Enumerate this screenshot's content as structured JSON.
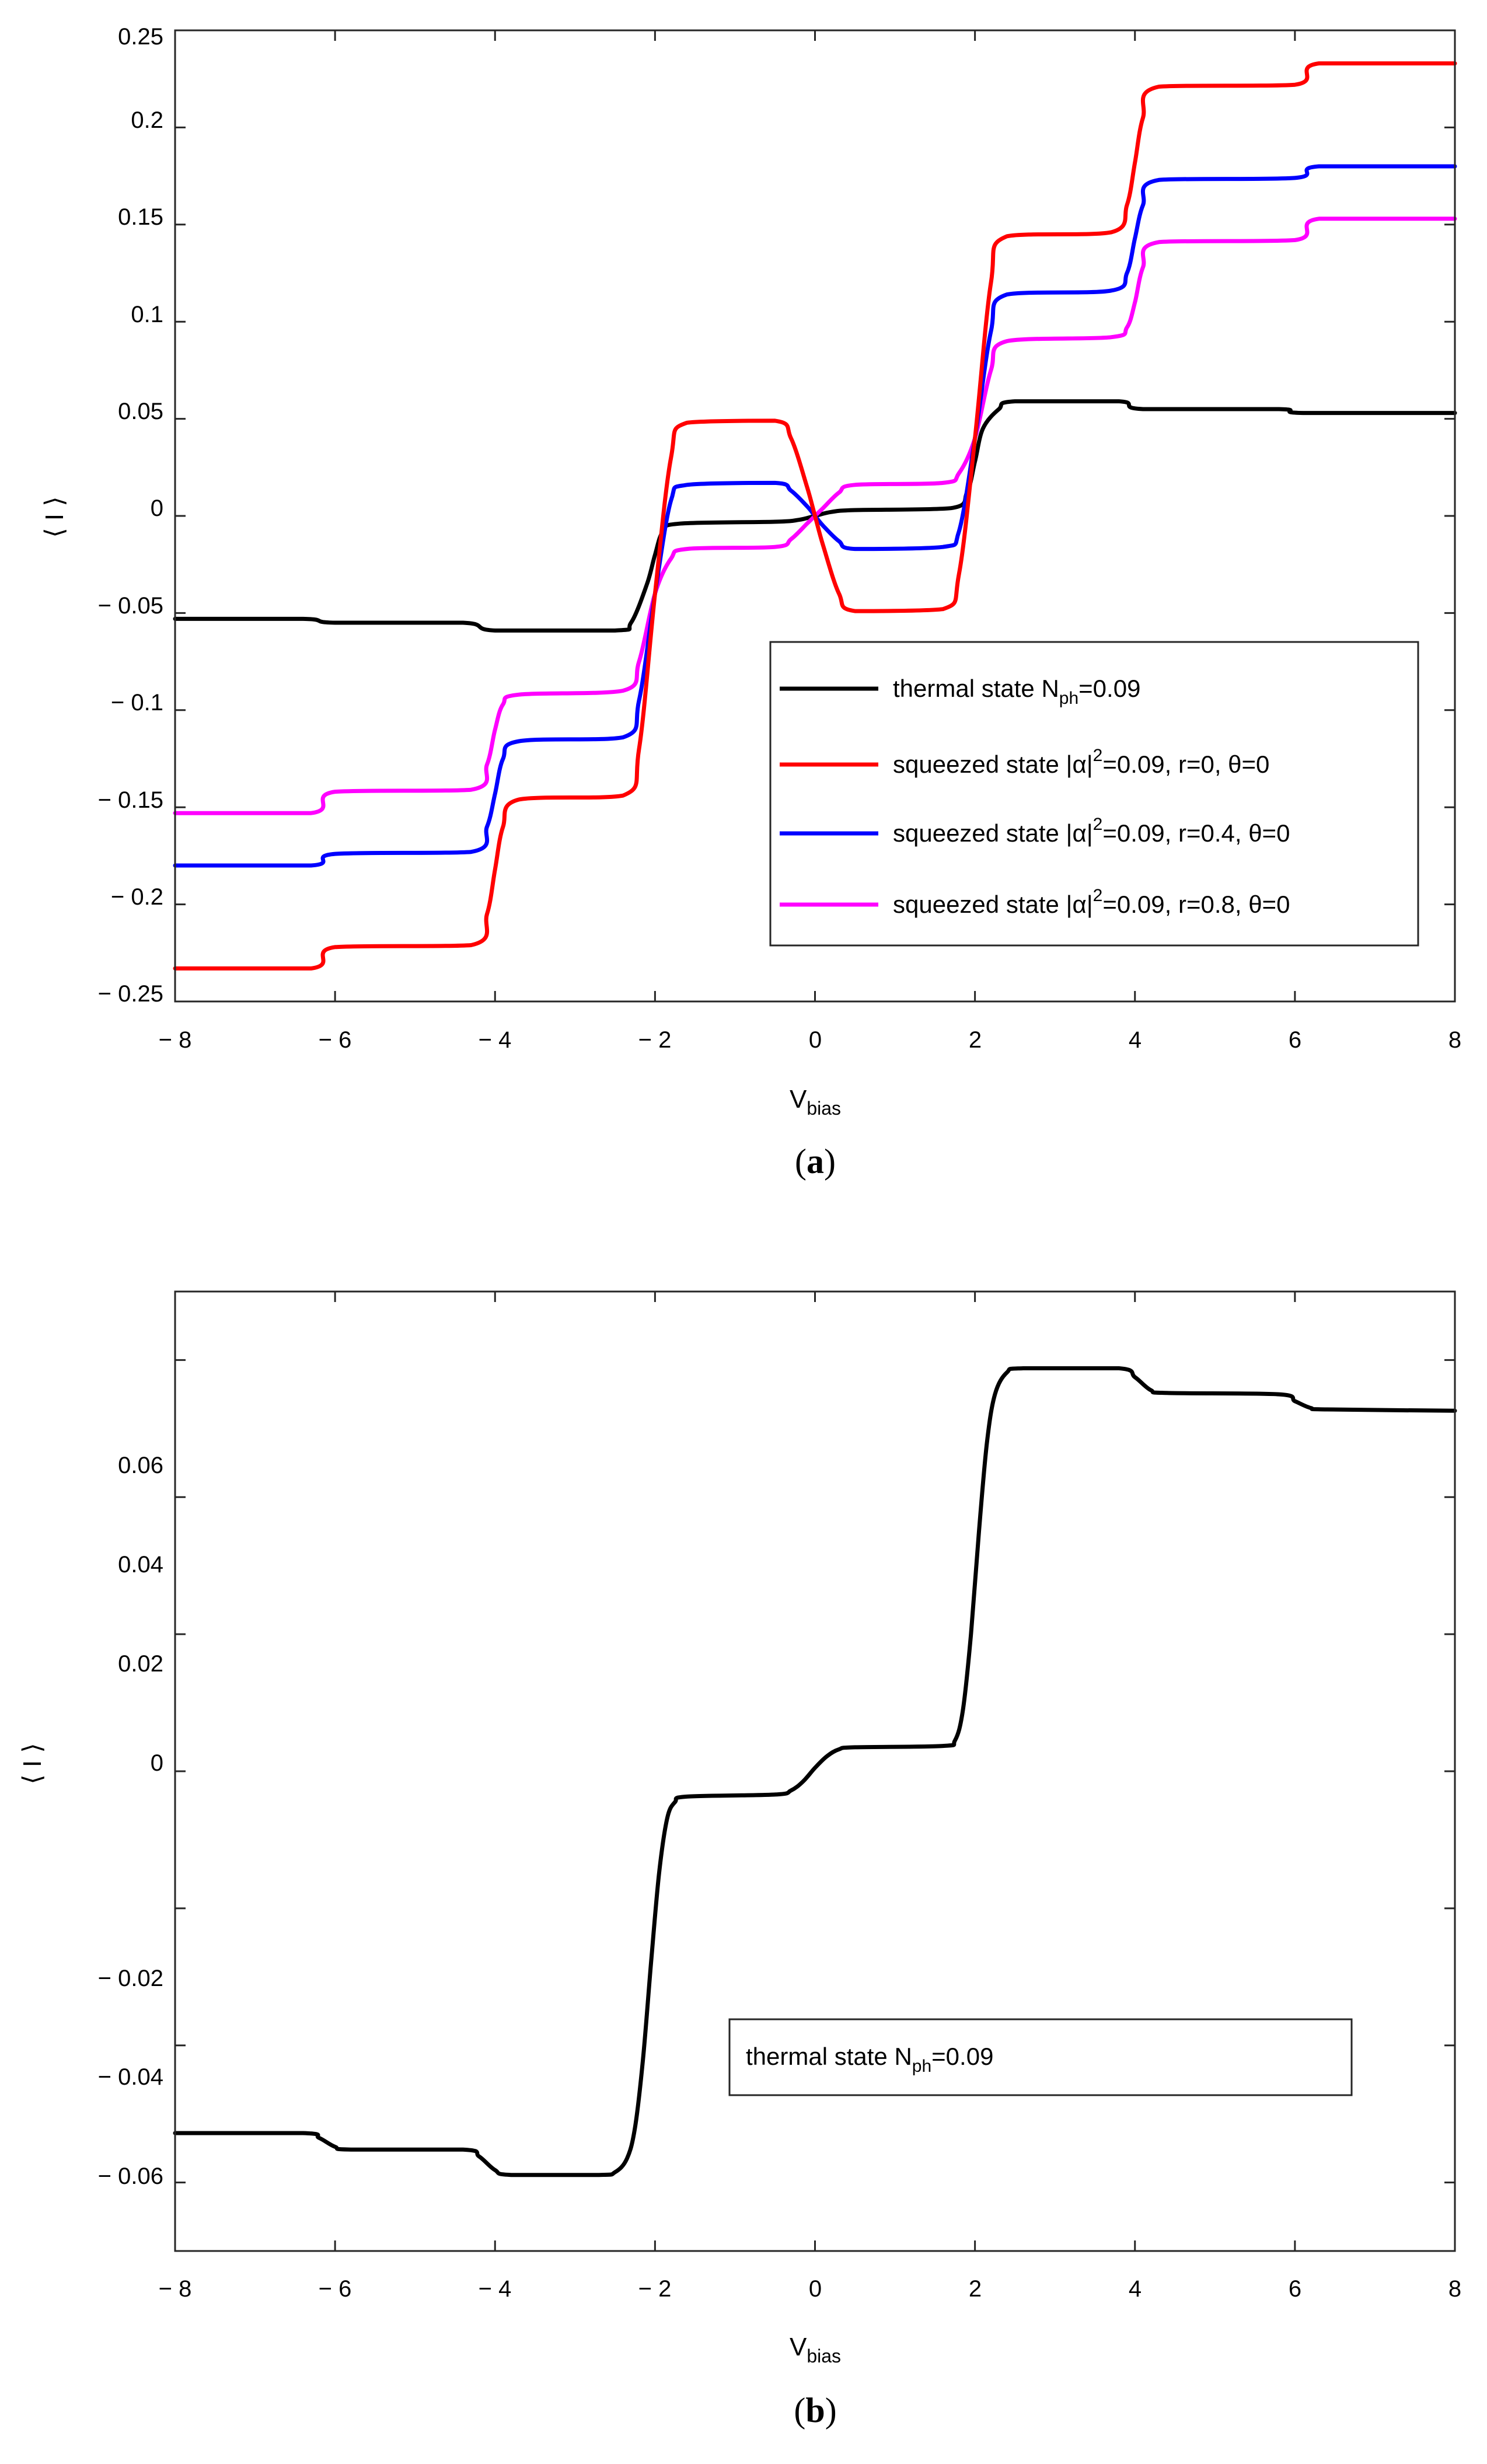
{
  "colors": {
    "black": "#000000",
    "red": "#ff0000",
    "blue": "#0000ff",
    "magenta": "#ff00ff"
  },
  "chart_data": [
    {
      "type": "line",
      "panel": "a",
      "caption": {
        "open": "(",
        "letter": "a",
        "close": ")"
      },
      "xlabel": {
        "main": "V",
        "sub": "bias"
      },
      "ylabel": "⟨ I ⟩",
      "xlim": [
        -8,
        8
      ],
      "ylim": [
        -0.25,
        0.25
      ],
      "xticks": [
        -8,
        -6,
        -4,
        -2,
        0,
        2,
        4,
        6,
        8
      ],
      "xtick_labels": [
        "− 8",
        "− 6",
        "− 4",
        "− 2",
        "0",
        "2",
        "4",
        "6",
        "8"
      ],
      "yticks": [
        -0.25,
        -0.2,
        -0.15,
        -0.1,
        -0.05,
        0,
        0.05,
        0.1,
        0.15,
        0.2,
        0.25
      ],
      "ytick_labels": [
        "− 0.25",
        "− 0.2",
        "− 0.15",
        "− 0.1",
        "− 0.05",
        "0",
        "0.05",
        "0.1",
        "0.15",
        "0.2",
        "0.25"
      ],
      "legend_location": "lower-right",
      "series": [
        {
          "name": "thermal state",
          "color": "#000000",
          "legend": {
            "pre": "thermal state N",
            "sub": "ph",
            "post": "=0.09"
          },
          "points": [
            [
              -8,
              -0.053
            ],
            [
              -6.4,
              -0.053
            ],
            [
              -6.0,
              -0.055
            ],
            [
              -4.4,
              -0.055
            ],
            [
              -4.0,
              -0.059
            ],
            [
              -2.5,
              -0.059
            ],
            [
              -2.3,
              -0.055
            ],
            [
              -2.1,
              -0.035
            ],
            [
              -2.0,
              -0.02
            ],
            [
              -1.9,
              -0.008
            ],
            [
              -1.7,
              -0.004
            ],
            [
              -0.5,
              -0.003
            ],
            [
              -0.2,
              -0.002
            ],
            [
              0,
              0
            ],
            [
              0.2,
              0.002
            ],
            [
              0.5,
              0.003
            ],
            [
              1.7,
              0.004
            ],
            [
              1.9,
              0.012
            ],
            [
              2.0,
              0.028
            ],
            [
              2.1,
              0.045
            ],
            [
              2.3,
              0.055
            ],
            [
              2.5,
              0.059
            ],
            [
              3.8,
              0.059
            ],
            [
              4.1,
              0.055
            ],
            [
              5.8,
              0.055
            ],
            [
              6.1,
              0.053
            ],
            [
              8,
              0.053
            ]
          ]
        },
        {
          "name": "squeezed r=0",
          "color": "#ff0000",
          "legend": {
            "pre": "squeezed state |α|",
            "sup": "2",
            "post": "=0.09, r=0, θ=0"
          },
          "points": [
            [
              -8,
              -0.233
            ],
            [
              -6.3,
              -0.233
            ],
            [
              -6.0,
              -0.222
            ],
            [
              -4.3,
              -0.221
            ],
            [
              -4.1,
              -0.205
            ],
            [
              -4.0,
              -0.182
            ],
            [
              -3.9,
              -0.16
            ],
            [
              -3.7,
              -0.146
            ],
            [
              -2.4,
              -0.144
            ],
            [
              -2.2,
              -0.12
            ],
            [
              -2.0,
              -0.04
            ],
            [
              -1.8,
              0.03
            ],
            [
              -1.6,
              0.048
            ],
            [
              -0.5,
              0.049
            ],
            [
              -0.3,
              0.04
            ],
            [
              -0.1,
              0.015
            ],
            [
              0,
              0
            ],
            [
              0.1,
              -0.015
            ],
            [
              0.3,
              -0.04
            ],
            [
              0.5,
              -0.049
            ],
            [
              1.6,
              -0.048
            ],
            [
              1.8,
              -0.03
            ],
            [
              2.0,
              0.04
            ],
            [
              2.2,
              0.12
            ],
            [
              2.4,
              0.144
            ],
            [
              3.7,
              0.146
            ],
            [
              3.9,
              0.16
            ],
            [
              4.0,
              0.182
            ],
            [
              4.1,
              0.205
            ],
            [
              4.3,
              0.221
            ],
            [
              6.0,
              0.222
            ],
            [
              6.3,
              0.233
            ],
            [
              8,
              0.233
            ]
          ]
        },
        {
          "name": "squeezed r=0.4",
          "color": "#0000ff",
          "legend": {
            "pre": "squeezed state |α|",
            "sup": "2",
            "post": "=0.09, r=0.4, θ=0"
          },
          "points": [
            [
              -8,
              -0.18
            ],
            [
              -6.3,
              -0.18
            ],
            [
              -6.0,
              -0.174
            ],
            [
              -4.3,
              -0.173
            ],
            [
              -4.1,
              -0.16
            ],
            [
              -4.0,
              -0.143
            ],
            [
              -3.9,
              -0.125
            ],
            [
              -3.7,
              -0.116
            ],
            [
              -2.4,
              -0.114
            ],
            [
              -2.2,
              -0.095
            ],
            [
              -2.0,
              -0.04
            ],
            [
              -1.8,
              0.008
            ],
            [
              -1.6,
              0.016
            ],
            [
              -0.5,
              0.017
            ],
            [
              -0.3,
              0.013
            ],
            [
              -0.1,
              0.005
            ],
            [
              0,
              0
            ],
            [
              0.1,
              -0.005
            ],
            [
              0.3,
              -0.013
            ],
            [
              0.5,
              -0.017
            ],
            [
              1.6,
              -0.016
            ],
            [
              1.8,
              -0.008
            ],
            [
              2.0,
              0.04
            ],
            [
              2.2,
              0.095
            ],
            [
              2.4,
              0.114
            ],
            [
              3.7,
              0.116
            ],
            [
              3.9,
              0.125
            ],
            [
              4.0,
              0.143
            ],
            [
              4.1,
              0.16
            ],
            [
              4.3,
              0.173
            ],
            [
              6.0,
              0.174
            ],
            [
              6.3,
              0.18
            ],
            [
              8,
              0.18
            ]
          ]
        },
        {
          "name": "squeezed r=0.8",
          "color": "#ff00ff",
          "legend": {
            "pre": "squeezed state |α|",
            "sup": "2",
            "post": "=0.09, r=0.8, θ=0"
          },
          "points": [
            [
              -8,
              -0.153
            ],
            [
              -6.3,
              -0.153
            ],
            [
              -6.0,
              -0.142
            ],
            [
              -4.3,
              -0.141
            ],
            [
              -4.1,
              -0.128
            ],
            [
              -4.0,
              -0.11
            ],
            [
              -3.9,
              -0.097
            ],
            [
              -3.7,
              -0.092
            ],
            [
              -2.4,
              -0.09
            ],
            [
              -2.2,
              -0.075
            ],
            [
              -2.0,
              -0.04
            ],
            [
              -1.8,
              -0.022
            ],
            [
              -1.6,
              -0.017
            ],
            [
              -0.5,
              -0.016
            ],
            [
              -0.3,
              -0.012
            ],
            [
              -0.1,
              -0.004
            ],
            [
              0,
              0
            ],
            [
              0.1,
              0.004
            ],
            [
              0.3,
              0.012
            ],
            [
              0.5,
              0.016
            ],
            [
              1.6,
              0.017
            ],
            [
              1.8,
              0.022
            ],
            [
              2.0,
              0.04
            ],
            [
              2.2,
              0.075
            ],
            [
              2.4,
              0.09
            ],
            [
              3.7,
              0.092
            ],
            [
              3.9,
              0.097
            ],
            [
              4.0,
              0.11
            ],
            [
              4.1,
              0.128
            ],
            [
              4.3,
              0.141
            ],
            [
              6.0,
              0.142
            ],
            [
              6.3,
              0.153
            ],
            [
              8,
              0.153
            ]
          ]
        }
      ]
    },
    {
      "type": "line",
      "panel": "b",
      "caption": {
        "open": "(",
        "letter": "b",
        "close": ")"
      },
      "xlabel": {
        "main": "V",
        "sub": "bias"
      },
      "ylabel": "⟨ I ⟩",
      "xlim": [
        -8,
        8
      ],
      "ylim": [
        -0.07,
        0.07
      ],
      "xticks": [
        -8,
        -6,
        -4,
        -2,
        0,
        2,
        4,
        6,
        8
      ],
      "xtick_labels": [
        "− 8",
        "− 6",
        "− 4",
        "− 2",
        "0",
        "2",
        "4",
        "6",
        "8"
      ],
      "yticks": [
        -0.06,
        -0.04,
        -0.02,
        0,
        0.02,
        0.04,
        0.06
      ],
      "ytick_labels": [
        "− 0.06",
        "− 0.04",
        "− 0.02",
        "0",
        "0.02",
        "0.04",
        "0.06"
      ],
      "legend_location": "lower-right",
      "series": [
        {
          "name": "thermal state",
          "color": "#000000",
          "legend": {
            "pre": "thermal state N",
            "sub": "ph",
            "post": "=0.09"
          },
          "points": [
            [
              -8,
              -0.0528
            ],
            [
              -6.4,
              -0.0528
            ],
            [
              -6.2,
              -0.0535
            ],
            [
              -6.0,
              -0.0548
            ],
            [
              -5.8,
              -0.0552
            ],
            [
              -4.4,
              -0.0552
            ],
            [
              -4.2,
              -0.0562
            ],
            [
              -4.0,
              -0.0582
            ],
            [
              -3.8,
              -0.0589
            ],
            [
              -2.7,
              -0.0589
            ],
            [
              -2.5,
              -0.0585
            ],
            [
              -2.35,
              -0.0565
            ],
            [
              -2.25,
              -0.052
            ],
            [
              -2.15,
              -0.042
            ],
            [
              -2.05,
              -0.028
            ],
            [
              -1.95,
              -0.015
            ],
            [
              -1.85,
              -0.007
            ],
            [
              -1.75,
              -0.0045
            ],
            [
              -1.6,
              -0.0037
            ],
            [
              -0.5,
              -0.0034
            ],
            [
              -0.3,
              -0.0028
            ],
            [
              -0.15,
              -0.0015
            ],
            [
              0,
              0.0005
            ],
            [
              0.15,
              0.0022
            ],
            [
              0.3,
              0.0032
            ],
            [
              0.5,
              0.0035
            ],
            [
              1.6,
              0.0037
            ],
            [
              1.75,
              0.0045
            ],
            [
              1.85,
              0.009
            ],
            [
              1.95,
              0.02
            ],
            [
              2.05,
              0.035
            ],
            [
              2.15,
              0.048
            ],
            [
              2.25,
              0.055
            ],
            [
              2.4,
              0.0582
            ],
            [
              2.6,
              0.0588
            ],
            [
              3.8,
              0.0588
            ],
            [
              4.0,
              0.0575
            ],
            [
              4.2,
              0.0556
            ],
            [
              4.4,
              0.0552
            ],
            [
              5.8,
              0.055
            ],
            [
              6.0,
              0.054
            ],
            [
              6.2,
              0.053
            ],
            [
              6.4,
              0.0528
            ],
            [
              8,
              0.0526
            ]
          ]
        }
      ]
    }
  ]
}
